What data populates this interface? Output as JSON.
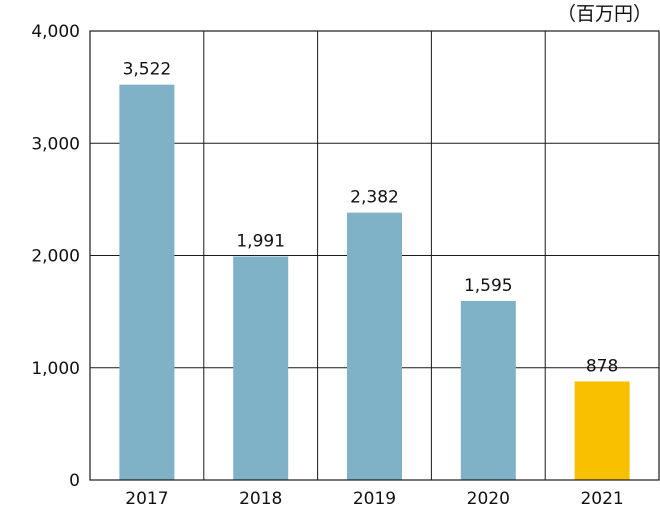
{
  "chart_data": {
    "type": "bar",
    "categories": [
      "2017",
      "2018",
      "2019",
      "2020",
      "2021"
    ],
    "values": [
      3522,
      1991,
      2382,
      1595,
      878
    ],
    "value_labels": [
      "3,522",
      "1,991",
      "2,382",
      "1,595",
      "878"
    ],
    "unit": "（百万円）",
    "ylim": [
      0,
      4000
    ],
    "yticks": [
      0,
      1000,
      2000,
      3000,
      4000
    ],
    "ytick_labels": [
      "0",
      "1,000",
      "2,000",
      "3,000",
      "4,000"
    ],
    "grid": true,
    "colors": {
      "default": "#7fb2c7",
      "highlight": "#f9c000",
      "highlight_category": "2021"
    }
  }
}
